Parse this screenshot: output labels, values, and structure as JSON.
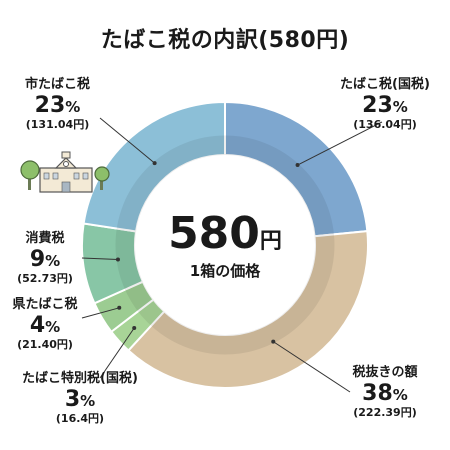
{
  "title": "たばこ税の内訳(580円)",
  "center": {
    "total_value": "580",
    "total_unit": "円",
    "caption": "1箱の価格"
  },
  "chart_data": {
    "type": "pie",
    "variant": "donut",
    "title": "たばこ税の内訳(580円)",
    "unit": "円",
    "total": 580,
    "segments": [
      {
        "name": "たばこ税(国税)",
        "percent": "23",
        "amount": "(136.04円)",
        "value": 136.04,
        "color": "#7ea7cf"
      },
      {
        "name": "税抜きの額",
        "percent": "38",
        "amount": "(222.39円)",
        "value": 222.39,
        "color": "#d8c2a2"
      },
      {
        "name": "たばこ特別税(国税)",
        "percent": "3",
        "amount": "(16.4円)",
        "value": 16.4,
        "color": "#a8d497"
      },
      {
        "name": "県たばこ税",
        "percent": "4",
        "amount": "(21.40円)",
        "value": 21.4,
        "color": "#9ccc92"
      },
      {
        "name": "消費税",
        "percent": "9",
        "amount": "(52.73円)",
        "value": 52.73,
        "color": "#88c6a6"
      },
      {
        "name": "市たばこ税",
        "percent": "23",
        "amount": "(131.04円)",
        "value": 131.04,
        "color": "#8cbfd7"
      }
    ],
    "percent_unit": "%"
  },
  "icons": {
    "building": "town-hall-icon",
    "tree": "tree-icon"
  }
}
